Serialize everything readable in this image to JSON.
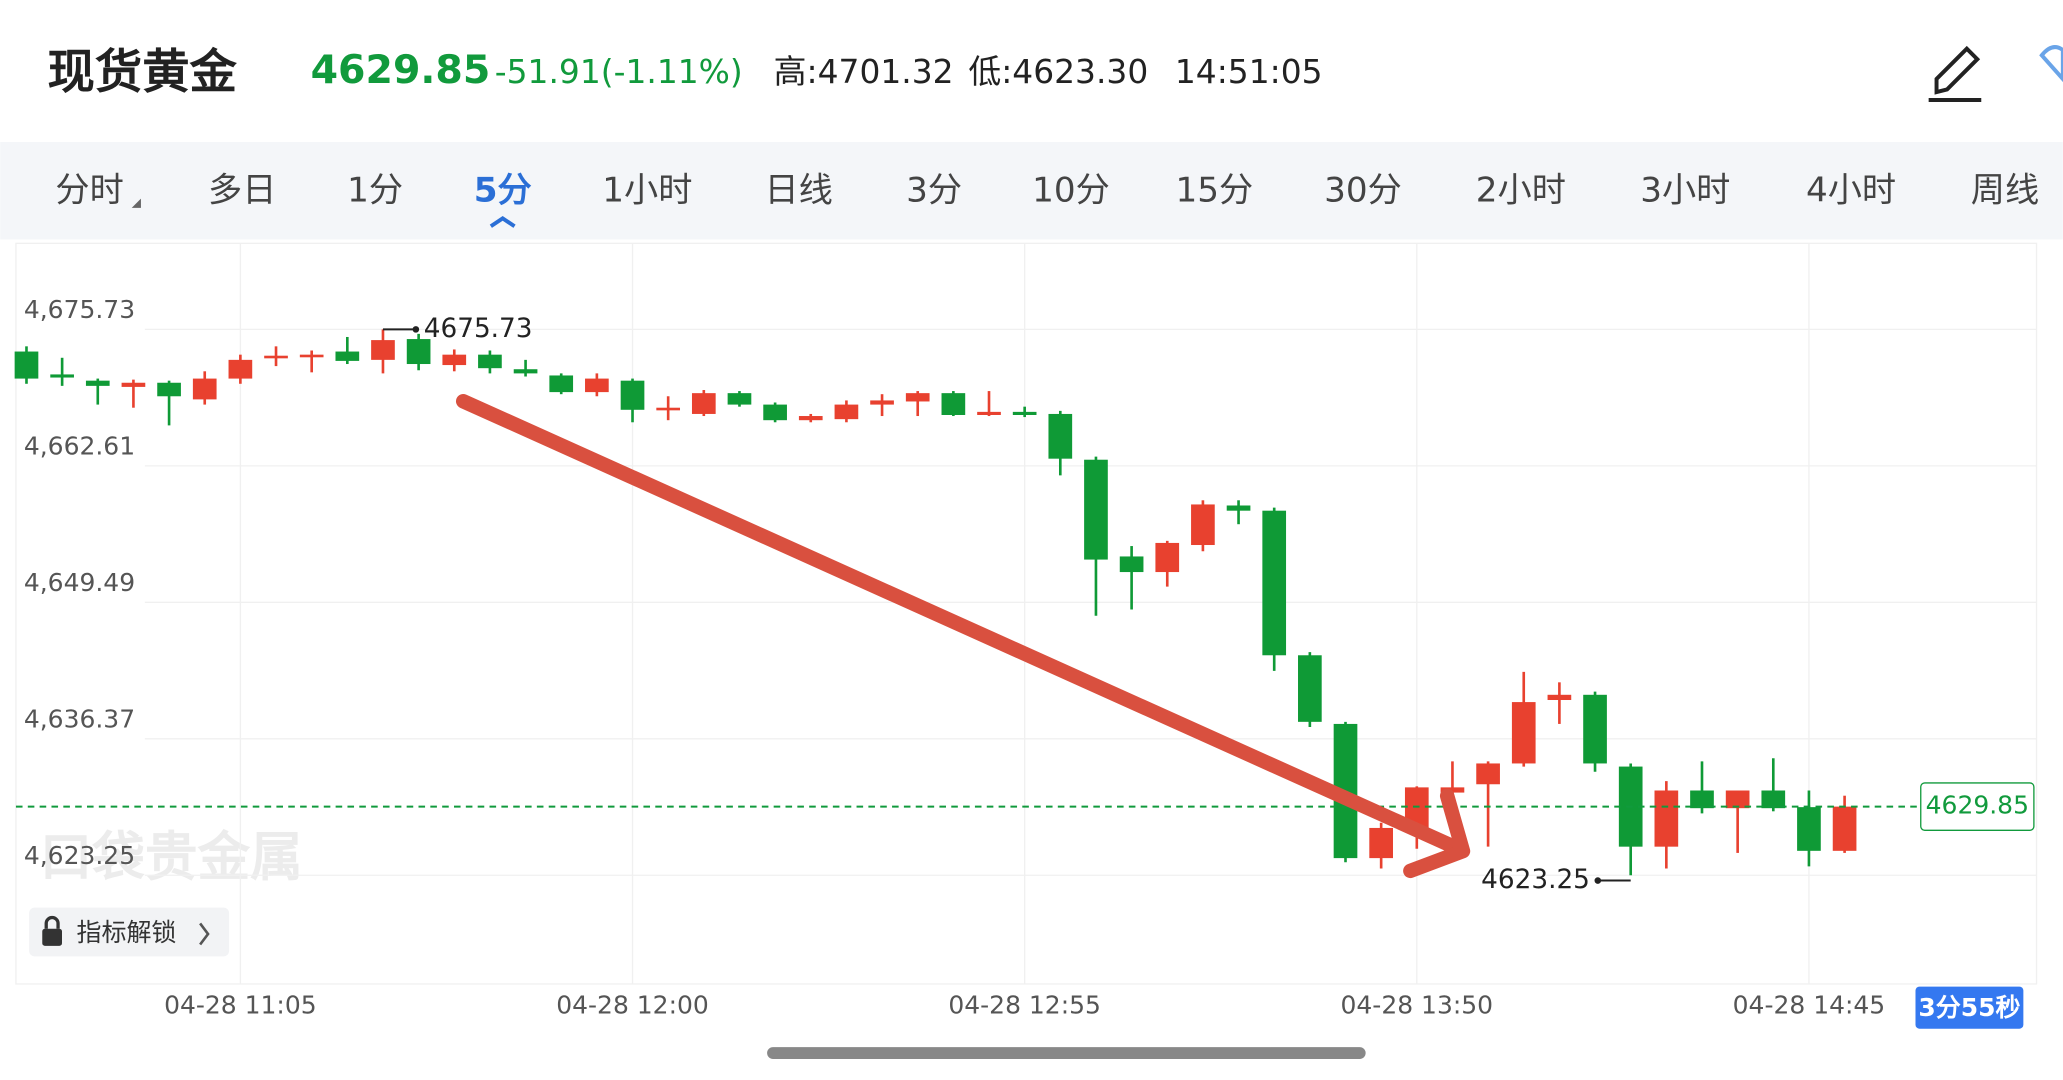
{
  "header": {
    "title": "现货黄金",
    "price": "4629.85",
    "change": "-51.91(-1.11%)",
    "high": "高:4701.32",
    "low": "低:4623.30",
    "time": "14:51:05"
  },
  "tabs": [
    "分时",
    "多日",
    "1分",
    "5分",
    "1小时",
    "日线",
    "3分",
    "10分",
    "15分",
    "30分",
    "2小时",
    "3小时",
    "4小时",
    "周线"
  ],
  "active_tab": 3,
  "watermark": "口袋贵金属",
  "indicator_button": "指标解锁",
  "countdown": "3分55秒",
  "chart_data": {
    "type": "candlestick",
    "categories": [
      null,
      null,
      null,
      null,
      null,
      null,
      "04-28 11:05",
      null,
      null,
      null,
      null,
      null,
      null,
      null,
      null,
      null,
      null,
      "04-28 12:00",
      null,
      null,
      null,
      null,
      null,
      null,
      null,
      null,
      null,
      null,
      "04-28 12:55",
      null,
      null,
      null,
      null,
      null,
      null,
      null,
      null,
      null,
      null,
      "04-28 13:50",
      null,
      null,
      null,
      null,
      null,
      null,
      null,
      null,
      null,
      null,
      "04-28 14:45",
      null
    ],
    "open": [
      4673.6,
      4671.4,
      4670.8,
      4670.2,
      4670.6,
      4669.0,
      4671.0,
      4673.0,
      4673.2,
      4673.6,
      4672.8,
      4674.8,
      4672.3,
      4673.3,
      4671.9,
      4671.3,
      4669.7,
      4670.8,
      4668.0,
      4667.6,
      4669.6,
      4668.5,
      4667.0,
      4667.1,
      4668.5,
      4668.8,
      4669.6,
      4667.5,
      4667.8,
      4667.6,
      4663.2,
      4653.9,
      4652.4,
      4655.0,
      4658.8,
      4658.3,
      4644.4,
      4637.8,
      4624.9,
      4627.7,
      4631.2,
      4632.0,
      4634.0,
      4640.1,
      4640.6,
      4633.7,
      4626.0,
      4631.4,
      4629.7,
      4631.4,
      4629.8,
      4625.6
    ],
    "high": [
      4674.1,
      4673.0,
      4671.0,
      4670.9,
      4670.8,
      4671.7,
      4673.3,
      4674.1,
      4673.7,
      4675.0,
      4675.73,
      4675.3,
      4673.8,
      4673.7,
      4672.8,
      4671.5,
      4671.5,
      4671.0,
      4669.3,
      4669.9,
      4669.8,
      4668.7,
      4667.6,
      4668.9,
      4669.5,
      4669.8,
      4669.8,
      4669.8,
      4668.3,
      4667.9,
      4663.5,
      4654.9,
      4655.4,
      4659.3,
      4659.3,
      4658.6,
      4644.7,
      4638.0,
      4628.3,
      4631.8,
      4634.2,
      4634.2,
      4642.8,
      4641.8,
      4640.9,
      4634.0,
      4632.3,
      4634.2,
      4631.4,
      4634.5,
      4631.4,
      4630.9
    ],
    "low": [
      4670.5,
      4670.3,
      4668.5,
      4668.2,
      4666.5,
      4668.5,
      4670.5,
      4672.2,
      4671.6,
      4672.4,
      4671.5,
      4671.8,
      4671.7,
      4671.5,
      4671.2,
      4669.5,
      4669.3,
      4666.8,
      4667.0,
      4667.4,
      4668.3,
      4666.8,
      4666.8,
      4666.8,
      4667.4,
      4667.4,
      4667.4,
      4667.4,
      4667.3,
      4661.7,
      4648.2,
      4648.8,
      4651.0,
      4654.4,
      4657.0,
      4642.9,
      4637.5,
      4624.5,
      4623.9,
      4625.8,
      4629.6,
      4626.0,
      4633.7,
      4637.8,
      4633.2,
      4623.25,
      4623.9,
      4629.2,
      4625.4,
      4629.4,
      4624.1,
      4625.4
    ],
    "close": [
      4671.0,
      4671.1,
      4670.3,
      4670.6,
      4669.3,
      4671.0,
      4672.8,
      4673.2,
      4673.3,
      4672.7,
      4674.7,
      4672.4,
      4673.3,
      4672.0,
      4671.5,
      4669.7,
      4671.0,
      4668.0,
      4668.2,
      4669.6,
      4668.5,
      4667.0,
      4667.4,
      4668.5,
      4668.9,
      4669.6,
      4667.5,
      4667.8,
      4667.5,
      4663.3,
      4653.6,
      4652.4,
      4655.2,
      4658.9,
      4658.3,
      4644.4,
      4638.0,
      4624.9,
      4627.8,
      4631.7,
      4631.7,
      4634.0,
      4639.9,
      4640.6,
      4634.0,
      4626.0,
      4631.4,
      4629.7,
      4631.4,
      4629.7,
      4625.6,
      4629.85
    ],
    "up_color": "#e8412f",
    "down_color": "#0f9a36",
    "ylim": [
      4612.8,
      4684
    ],
    "yticks": [
      {
        "value": 4623.25,
        "label": "4,623.25"
      },
      {
        "value": 4636.37,
        "label": "4,636.37"
      },
      {
        "value": 4649.49,
        "label": "4,649.49"
      },
      {
        "value": 4662.61,
        "label": "4,662.61"
      },
      {
        "value": 4675.73,
        "label": "4,675.73"
      }
    ],
    "grid": true,
    "max_label": 4675.73,
    "min_label": 4623.25,
    "last_price": 4629.85
  }
}
